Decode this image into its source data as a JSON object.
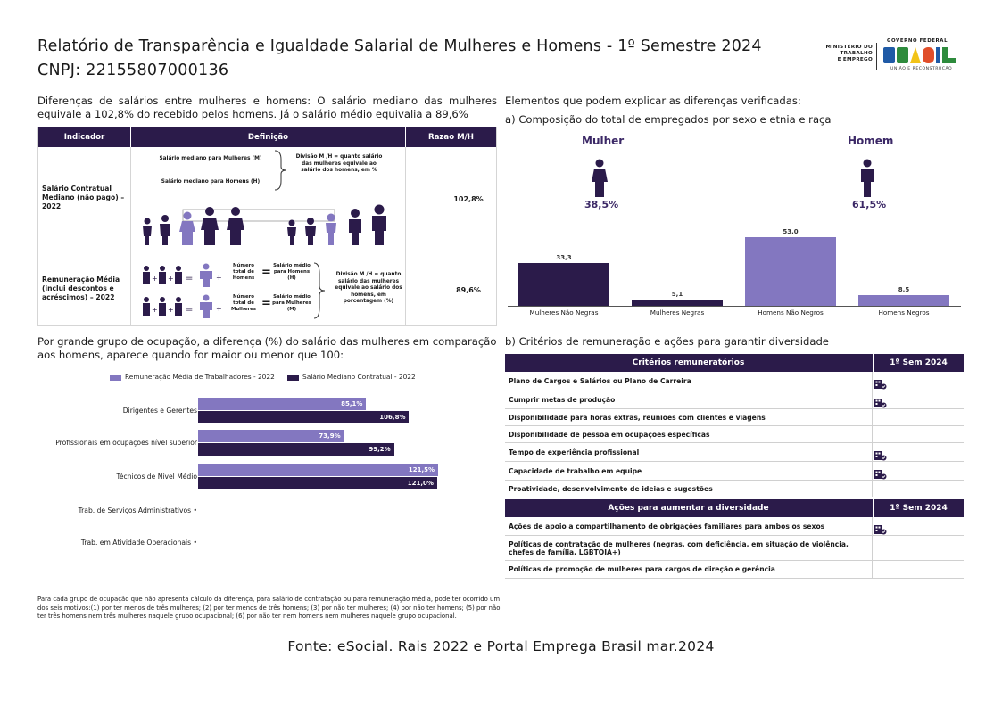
{
  "header": {
    "title": "Relatório de Transparência e Igualdade Salarial de Mulheres e Homens - 1º Semestre 2024",
    "cnpj": "CNPJ: 22155807000136"
  },
  "logo": {
    "ministry_line1": "MINISTÉRIO DO",
    "ministry_line2": "TRABALHO",
    "ministry_line3": "E EMPREGO",
    "gov": "GOVERNO FEDERAL",
    "brand": "BRASIL",
    "tagline": "UNIÃO E RECONSTRUÇÃO",
    "colors": [
      "#2e8b3d",
      "#f2c318",
      "#1f5aa6",
      "#e04e2a"
    ]
  },
  "intro": "Diferenças de salários entre mulheres e homens: O salário mediano das mulheres equivale a 102,8% do recebido pelos homens. Já o salário médio equivalia a 89,6%",
  "indicator_table": {
    "headers": [
      "Indicador",
      "Definição",
      "Razao M/H"
    ],
    "rows": [
      {
        "indicator": "Salário Contratual Mediano (não pago) – 2022",
        "def_women": "Salário mediano para Mulheres (M)",
        "def_men": "Salário mediano para Homens (H)",
        "def_note": "Divisão M /H = quanto salário das mulheres equivale ao salário dos homens, em %",
        "ratio": "102,8%"
      },
      {
        "indicator": "Remuneração Média (inclui descontos e acréscimos) – 2022",
        "eq1_count": "Número total de Homens",
        "eq1_salary": "Salário médio para Homens (H)",
        "eq2_count": "Número total de Mulheres",
        "eq2_salary": "Salário médio para Mulheres (M)",
        "def_note": "Divisão M /H = quanto salário das mulheres equivale ao salário dos homens, em porcentagem (%)",
        "ratio": "89,6%"
      }
    ]
  },
  "elements_title": "Elementos que podem explicar as diferenças verificadas:",
  "composition": {
    "subtitle": "a) Composição do total de empregados por sexo e etnia e raça",
    "female_label": "Mulher",
    "female_pct": "38,5%",
    "male_label": "Homem",
    "male_pct": "61,5%"
  },
  "chart_data": [
    {
      "type": "bar",
      "categories": [
        "Mulheres Não Negras",
        "Mulheres Negras",
        "Homens Não Negros",
        "Homens Negros"
      ],
      "values": [
        33.3,
        5.1,
        53.0,
        8.5
      ],
      "value_labels": [
        "33,3",
        "5,1",
        "53,0",
        "8,5"
      ],
      "colors": [
        "#2b1b4a",
        "#2b1b4a",
        "#8377c0",
        "#8377c0"
      ],
      "ylim": [
        0,
        53
      ]
    },
    {
      "type": "bar",
      "orientation": "horizontal",
      "categories": [
        "Dirigentes e Gerentes",
        "Profissionais em ocupações nível superior",
        "Técnicos de Nível Médio",
        "Trab. de Serviços Administrativos",
        "Trab. em Atividade Operacionais"
      ],
      "series": [
        {
          "name": "Remuneração Média de Trabalhadores - 2022",
          "color": "#8377c0",
          "values": [
            85.1,
            73.9,
            121.5,
            null,
            null
          ],
          "labels": [
            "85,1%",
            "73,9%",
            "121,5%",
            "",
            ""
          ]
        },
        {
          "name": "Salário Mediano Contratual - 2022",
          "color": "#2b1b4a",
          "values": [
            106.8,
            99.2,
            121.0,
            null,
            null
          ],
          "labels": [
            "106,8%",
            "99,2%",
            "121,0%",
            "",
            ""
          ]
        }
      ],
      "legend": "top",
      "xlim": [
        0,
        121.5
      ]
    }
  ],
  "occupation": {
    "text": "Por grande grupo de ocupação, a diferença (%) do salário das mulheres em comparação aos homens, aparece quando for maior ou menor que 100:",
    "footnote": "Para cada grupo de ocupação que não apresenta cálculo da diferença, para salário de contratação ou para remuneração média, pode ter ocorrido um dos seis motivos:(1) por ter menos de três mulheres; (2) por ter menos de três homens; (3) por não ter mulheres; (4) por não ter homens; (5) por não ter três homens nem três mulheres naquele grupo ocupacional; (6) por não ter nem homens nem mulheres naquele grupo ocupacional."
  },
  "criteria": {
    "subtitle": "b) Critérios de remuneração e ações para garantir diversidade",
    "header1": "Critérios remuneratórios",
    "header2": "1º Sem 2024",
    "rows": [
      {
        "label": "Plano de Cargos e Salários ou Plano de Carreira",
        "checked": true
      },
      {
        "label": "Cumprir metas de produção",
        "checked": true
      },
      {
        "label": "Disponibilidade para horas extras, reuniões com clientes e viagens",
        "checked": false
      },
      {
        "label": "Disponibilidade de pessoa em ocupações específicas",
        "checked": false
      },
      {
        "label": "Tempo de experiência profissional",
        "checked": true
      },
      {
        "label": "Capacidade de trabalho em equipe",
        "checked": true
      },
      {
        "label": "Proatividade, desenvolvimento de ideias e sugestões",
        "checked": false
      }
    ],
    "header3": "Ações para aumentar a diversidade",
    "header4": "1º Sem 2024",
    "actions": [
      {
        "label": "Ações de apoio a compartilhamento de obrigações familiares para ambos os sexos",
        "checked": true
      },
      {
        "label": "Políticas de contratação de mulheres (negras, com deficiência, em situação de violência, chefes de família, LGBTQIA+)",
        "checked": false
      },
      {
        "label": "Políticas de promoção de mulheres para cargos de direção e gerência",
        "checked": false
      }
    ],
    "icon": "building-check-icon"
  },
  "source": "Fonte: eSocial. Rais 2022 e Portal Emprega Brasil mar.2024"
}
